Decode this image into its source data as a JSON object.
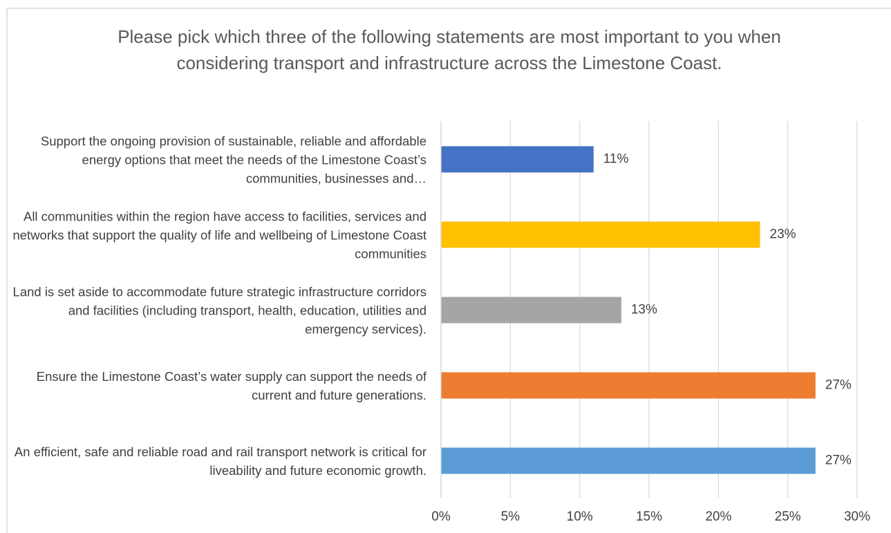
{
  "chart_data": {
    "type": "bar",
    "orientation": "horizontal",
    "title": "Please pick which three of the following statements are most important to you when considering transport and infrastructure across the Limestone Coast.",
    "categories": [
      "Support the ongoing provision of sustainable, reliable and affordable energy options that meet the needs of the Limestone Coast’s communities, businesses and…",
      "All communities within the region have access to facilities, services and networks that support the quality of life and wellbeing of Limestone Coast communities",
      "Land is set aside to accommodate future strategic infrastructure corridors and facilities (including transport, health, education, utilities and emergency services).",
      "Ensure the Limestone Coast’s water supply can support the needs of current and future generations.",
      "An efficient, safe and reliable road and rail transport network is critical for liveability and future economic growth."
    ],
    "values": [
      11,
      23,
      13,
      27,
      27
    ],
    "value_labels": [
      "11%",
      "23%",
      "13%",
      "27%",
      "27%"
    ],
    "colors": [
      "#4472c4",
      "#ffc000",
      "#a5a5a5",
      "#ed7d31",
      "#5b9bd5"
    ],
    "xlim": [
      0,
      30
    ],
    "xticks": [
      {
        "value": 0,
        "label": "0%"
      },
      {
        "value": 5,
        "label": "5%"
      },
      {
        "value": 10,
        "label": "10%"
      },
      {
        "value": 15,
        "label": "15%"
      },
      {
        "value": 20,
        "label": "20%"
      },
      {
        "value": 25,
        "label": "25%"
      },
      {
        "value": 30,
        "label": "30%"
      }
    ],
    "grid": true
  }
}
